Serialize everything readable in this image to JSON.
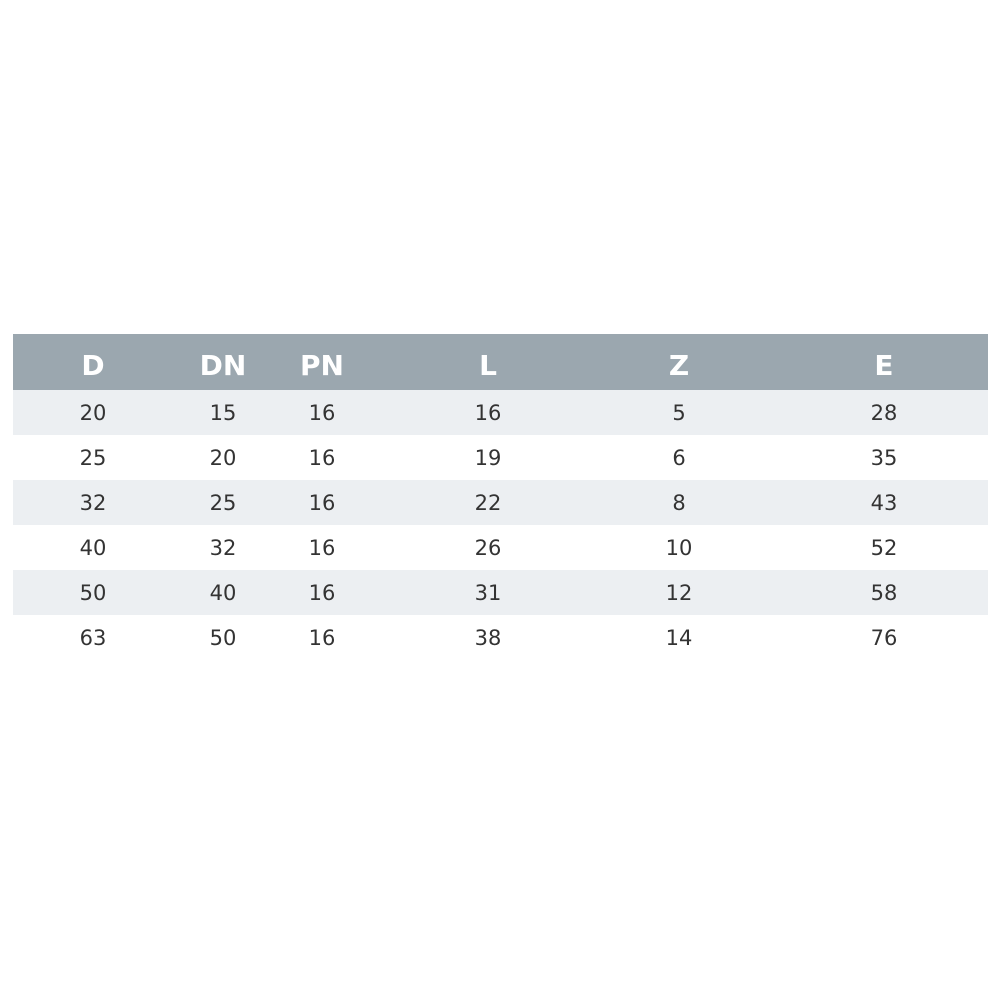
{
  "table": {
    "headers": [
      "D",
      "DN",
      "PN",
      "L",
      "Z",
      "E"
    ],
    "rows": [
      [
        "20",
        "15",
        "16",
        "16",
        "5",
        "28"
      ],
      [
        "25",
        "20",
        "16",
        "19",
        "6",
        "35"
      ],
      [
        "32",
        "25",
        "16",
        "22",
        "8",
        "43"
      ],
      [
        "40",
        "32",
        "16",
        "26",
        "10",
        "52"
      ],
      [
        "50",
        "40",
        "16",
        "31",
        "12",
        "58"
      ],
      [
        "63",
        "50",
        "16",
        "38",
        "14",
        "76"
      ]
    ]
  },
  "colors": {
    "header_bg": "#9ba7af",
    "stripe_bg": "#eceff2",
    "header_text": "#ffffff",
    "cell_text": "#333333"
  }
}
